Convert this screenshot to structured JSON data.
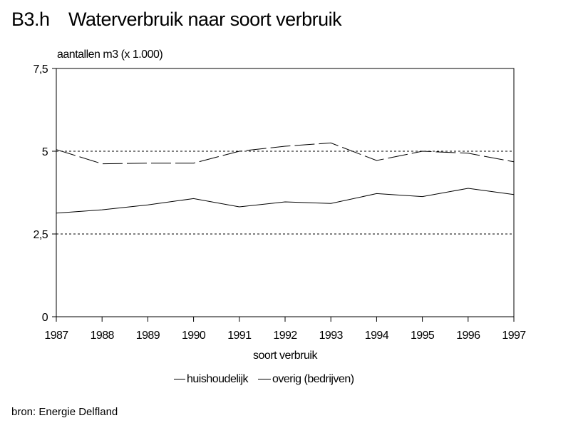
{
  "header": {
    "code": "B3.h",
    "title": "Waterverbruik naar soort verbruik"
  },
  "source": "bron: Energie Delfland",
  "chart_data": {
    "type": "line",
    "title": "Waterverbruik naar soort verbruik",
    "ylabel": "aantallen m3 (x 1.000)",
    "xlabel": "soort verbruik",
    "x": [
      "1987",
      "1988",
      "1989",
      "1990",
      "1991",
      "1992",
      "1993",
      "1994",
      "1995",
      "1996",
      "1997"
    ],
    "ylim": [
      0,
      7.5
    ],
    "yticks": [
      0,
      2.5,
      5,
      7.5
    ],
    "ytick_labels": [
      "0",
      "2,5",
      "5",
      "7,5"
    ],
    "grid": "horizontal dashed at 2,5 and 5",
    "legend_position": "bottom",
    "series": [
      {
        "name": "huishoudelijk",
        "style": "solid",
        "values": [
          3.13,
          3.23,
          3.38,
          3.57,
          3.32,
          3.47,
          3.42,
          3.72,
          3.63,
          3.88,
          3.69
        ]
      },
      {
        "name": "overig (bedrijven)",
        "style": "dashed",
        "values": [
          5.05,
          4.62,
          4.64,
          4.64,
          5.0,
          5.15,
          5.25,
          4.72,
          5.0,
          4.94,
          4.68
        ]
      }
    ]
  }
}
